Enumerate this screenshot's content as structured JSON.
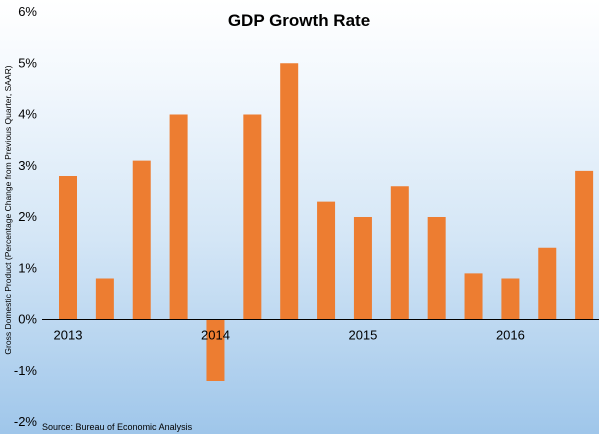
{
  "chart_data": {
    "type": "bar",
    "title": "GDP Growth Rate",
    "ylabel": "Gross Domestic Product (Percentage Change from Previous Quarter, SAAR)",
    "xlabel": "",
    "source": "Source: Bureau of Economic Analysis",
    "ylim": [
      -2,
      6
    ],
    "yticks": [
      -2,
      -1,
      0,
      1,
      2,
      3,
      4,
      5,
      6
    ],
    "ytick_labels": [
      "-2%",
      "-1%",
      "0%",
      "1%",
      "2%",
      "3%",
      "4%",
      "5%",
      "6%"
    ],
    "categories": [
      "2013",
      "",
      "",
      "",
      "2014",
      "",
      "",
      "",
      "2015",
      "",
      "",
      "",
      "2016",
      "",
      ""
    ],
    "values": [
      2.8,
      0.8,
      3.1,
      4.0,
      -1.2,
      4.0,
      5.0,
      2.3,
      2.0,
      2.6,
      2.0,
      0.9,
      0.8,
      1.4,
      2.9
    ],
    "bar_color": "#ed7d31",
    "grid": false,
    "legend": "none"
  }
}
